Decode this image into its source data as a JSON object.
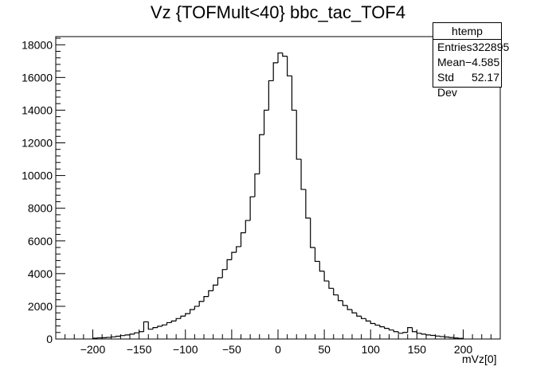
{
  "chart_data": {
    "type": "histogram",
    "title": "Vz {TOFMult<40} bbc_tac_TOF4",
    "xlabel": "mVz[0]",
    "ylabel": "",
    "xlim": [
      -240,
      240
    ],
    "ylim": [
      0,
      18500
    ],
    "bin_width": 5,
    "x_ticks": [
      -200,
      -150,
      -100,
      -50,
      0,
      50,
      100,
      150,
      200
    ],
    "y_ticks": [
      0,
      2000,
      4000,
      6000,
      8000,
      10000,
      12000,
      14000,
      16000,
      18000
    ],
    "grid": false,
    "series": [
      {
        "x": [
          -200,
          -195,
          -190,
          -185,
          -180,
          -175,
          -170,
          -165,
          -160,
          -155,
          -150,
          -145,
          -140,
          -135,
          -130,
          -125,
          -120,
          -115,
          -110,
          -105,
          -100,
          -95,
          -90,
          -85,
          -80,
          -75,
          -70,
          -65,
          -60,
          -55,
          -50,
          -45,
          -40,
          -35,
          -30,
          -25,
          -20,
          -15,
          -10,
          -5,
          0,
          5,
          10,
          15,
          20,
          25,
          30,
          35,
          40,
          45,
          50,
          55,
          60,
          65,
          70,
          75,
          80,
          85,
          90,
          95,
          100,
          105,
          110,
          115,
          120,
          125,
          130,
          135,
          140,
          145,
          150,
          155,
          160,
          165,
          170,
          175,
          180,
          185,
          190,
          195
        ],
        "values": [
          50,
          70,
          80,
          100,
          130,
          170,
          210,
          250,
          300,
          380,
          450,
          1050,
          600,
          700,
          780,
          860,
          1000,
          1100,
          1250,
          1400,
          1550,
          1800,
          2000,
          2300,
          2600,
          2950,
          3300,
          3750,
          4250,
          4850,
          5300,
          5650,
          6500,
          7250,
          8700,
          10100,
          12500,
          14000,
          15800,
          16900,
          17500,
          17300,
          16100,
          14000,
          11000,
          9150,
          7400,
          5600,
          4750,
          4150,
          3550,
          3100,
          2700,
          2350,
          2050,
          1800,
          1600,
          1400,
          1250,
          1100,
          950,
          850,
          750,
          650,
          550,
          450,
          350,
          400,
          700,
          450,
          350,
          300,
          250,
          220,
          180,
          150,
          120,
          90,
          60,
          40
        ]
      }
    ]
  },
  "stats": {
    "name": "htemp",
    "rows": [
      {
        "label": "Entries",
        "value": "322895"
      },
      {
        "label": "Mean",
        "value": "−4.585"
      },
      {
        "label": "Std Dev",
        "value": "52.17"
      }
    ]
  },
  "colors": {
    "line": "#000000",
    "frame": "#000000",
    "background": "#ffffff"
  }
}
